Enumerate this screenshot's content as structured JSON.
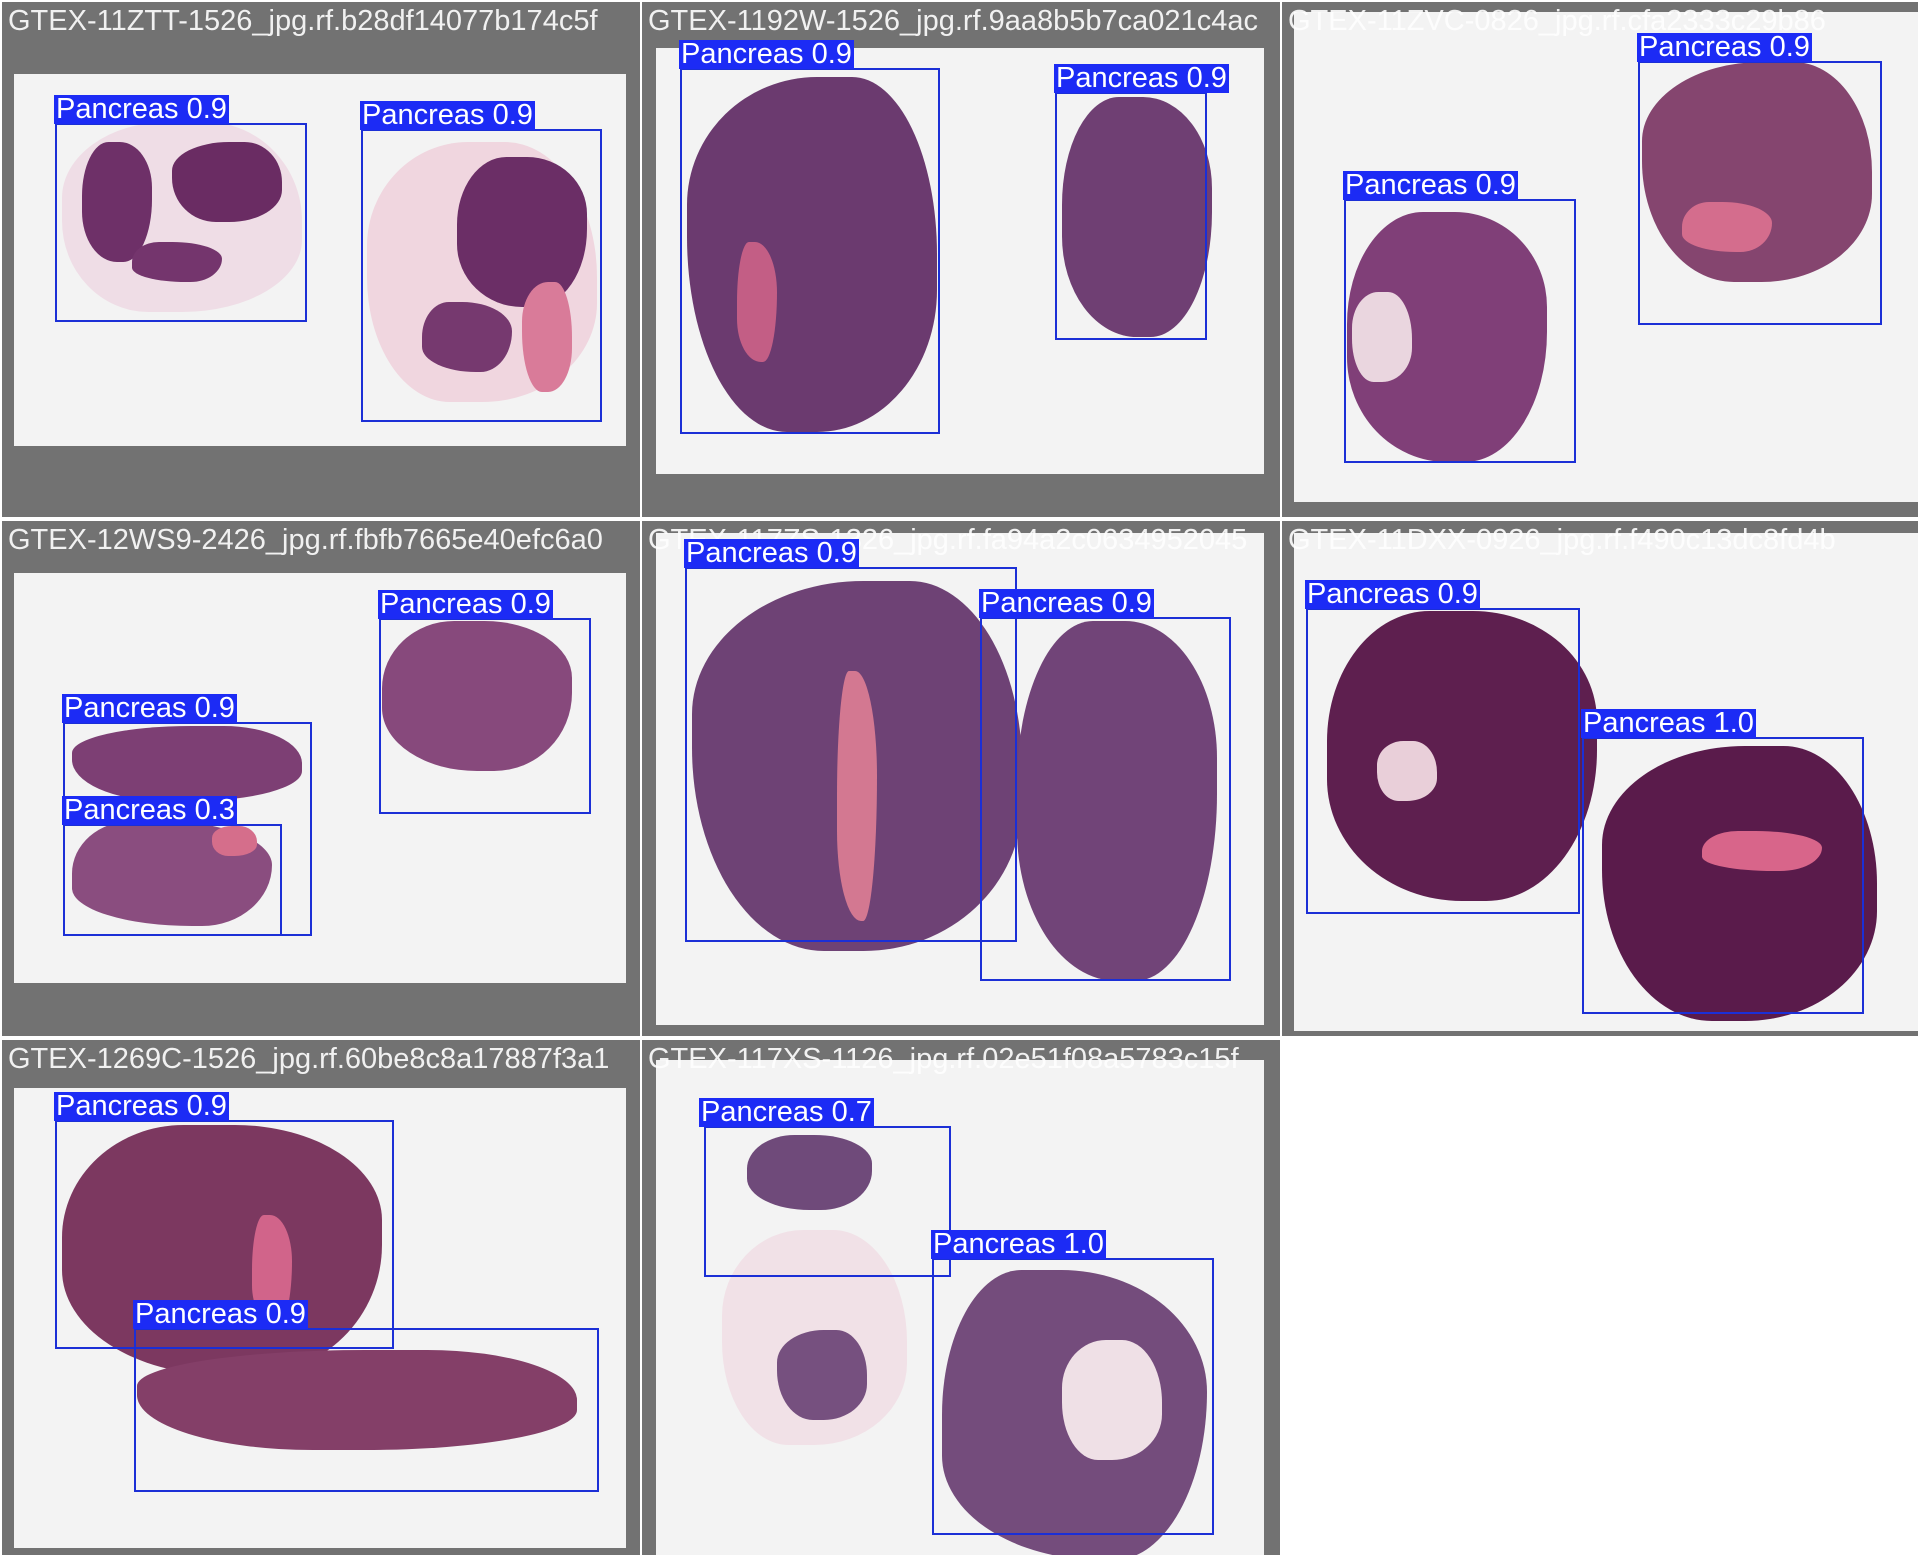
{
  "colors": {
    "tile_bg": "#727272",
    "slide_bg": "#f3f3f3",
    "box_color": "#1b2fd6",
    "label_bg": "#1c2bf5",
    "tissue_dark": "#6b2f66",
    "tissue_pink": "#d06b8f",
    "tissue_pale": "#efd9e2"
  },
  "tiles": [
    {
      "caption": "GTEX-11ZTT-1526_jpg.rf.b28df14077b174c5f",
      "detections": [
        {
          "label": "Pancreas 0.9"
        },
        {
          "label": "Pancreas 0.9"
        }
      ]
    },
    {
      "caption": "GTEX-1192W-1526_jpg.rf.9aa8b5b7ca021c4ac",
      "detections": [
        {
          "label": "Pancreas 0.9"
        },
        {
          "label": "Pancreas 0.9"
        }
      ]
    },
    {
      "caption": "GTEX-11ZVC-0826_jpg.rf.cfa2333c29b86",
      "detections": [
        {
          "label": "Pancreas 0.9"
        },
        {
          "label": "Pancreas 0.9"
        }
      ]
    },
    {
      "caption": "GTEX-12WS9-2426_jpg.rf.fbfb7665e40efc6a0",
      "detections": [
        {
          "label": "Pancreas 0.9"
        },
        {
          "label": "Pancreas 0.9"
        },
        {
          "label": "Pancreas 0.3"
        }
      ]
    },
    {
      "caption": "GTEX-117ZS-1326_jpg.rf.fa94a2c0634952045",
      "detections": [
        {
          "label": "Pancreas 0.9"
        },
        {
          "label": "Pancreas 0.9"
        }
      ]
    },
    {
      "caption": "GTEX-11DXX-0926_jpg.rf.f490c13dc8fd4b",
      "detections": [
        {
          "label": "Pancreas 0.9"
        },
        {
          "label": "Pancreas 1.0"
        }
      ]
    },
    {
      "caption": "GTEX-1269C-1526_jpg.rf.60be8c8a17887f3a1",
      "detections": [
        {
          "label": "Pancreas 0.9"
        },
        {
          "label": "Pancreas 0.9"
        }
      ]
    },
    {
      "caption": "GTEX-117XS-1126_jpg.rf.02e51f08a5783c15f",
      "detections": [
        {
          "label": "Pancreas 0.7"
        },
        {
          "label": "Pancreas 1.0"
        }
      ]
    }
  ]
}
